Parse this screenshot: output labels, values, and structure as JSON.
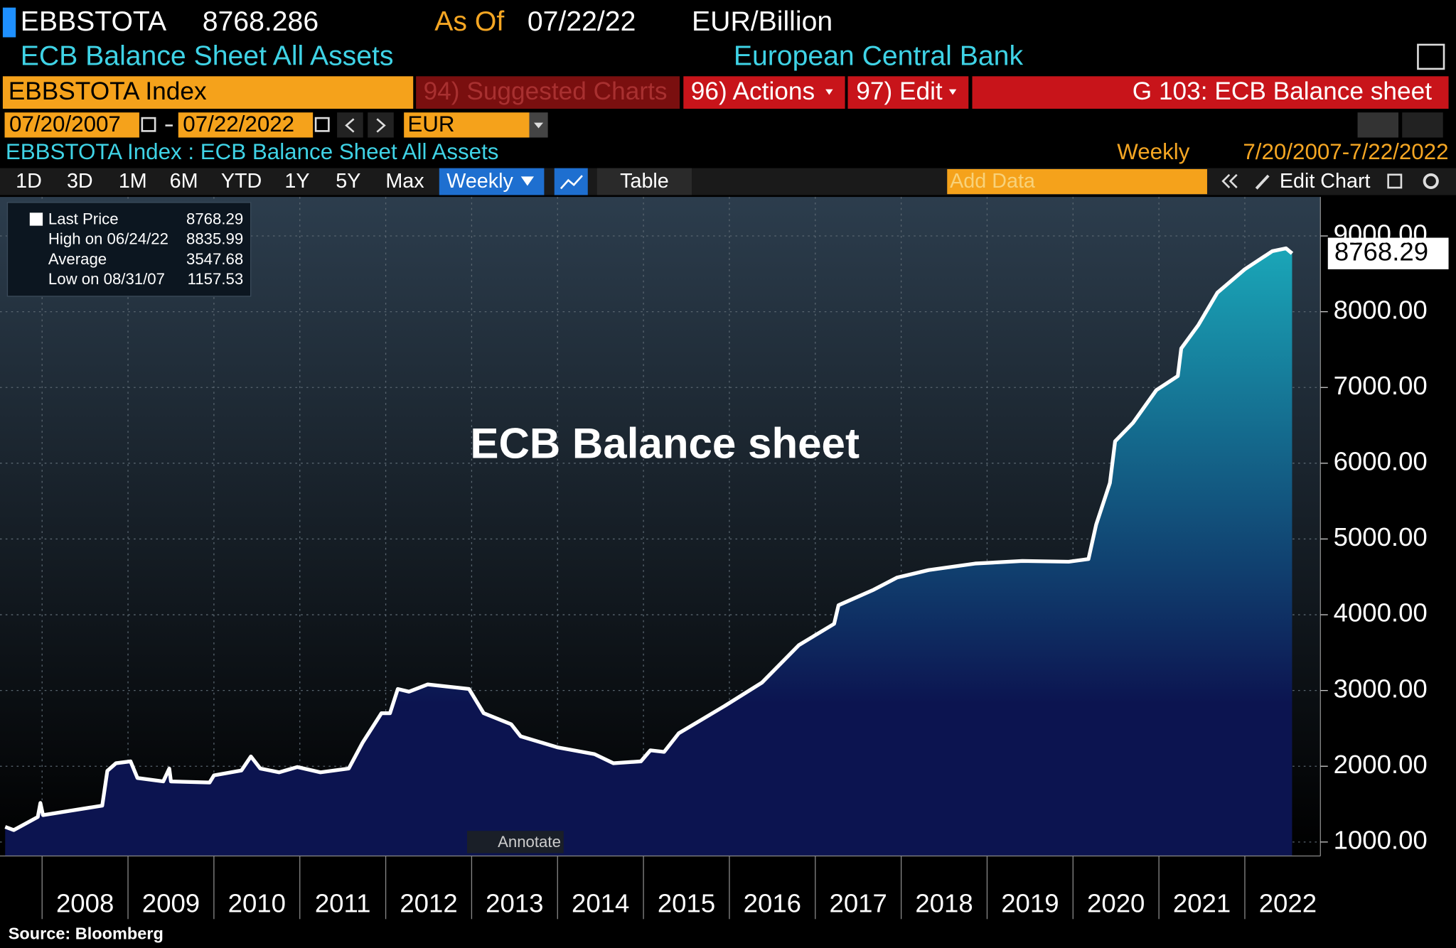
{
  "ticker_bar": {
    "ticker": "EBBSTOTA",
    "price": "8768.286",
    "as_of_label": "As Of",
    "as_of_date": "07/22/22",
    "units": "EUR/Billion",
    "name": "ECB Balance Sheet All Assets",
    "source": "European Central Bank"
  },
  "toolbar": {
    "security": "EBBSTOTA Index",
    "suggested": "94) Suggested Charts",
    "actions": "96) Actions",
    "edit": "97) Edit",
    "page": "G 103: ECB Balance sheet",
    "start_date": "07/20/2007",
    "end_date": "07/22/2022",
    "currency": "EUR",
    "series_title": "EBBSTOTA Index : ECB Balance Sheet All Assets",
    "frequency": "Weekly",
    "range": "7/20/2007-7/22/2022",
    "periods": [
      "1D",
      "3D",
      "1M",
      "6M",
      "YTD",
      "1Y",
      "5Y",
      "Max"
    ],
    "weekly_button": "Weekly",
    "table_button": "Table",
    "add_data_placeholder": "Add Data",
    "edit_chart": "Edit Chart"
  },
  "legend_box": {
    "rows": [
      [
        "Last Price",
        "8768.29"
      ],
      [
        "High on 06/24/22",
        "8835.99"
      ],
      [
        "Average",
        "3547.68"
      ],
      [
        "Low on 08/31/07",
        "1157.53"
      ]
    ]
  },
  "chart_data": {
    "type": "area",
    "title": "ECB Balance sheet",
    "color": "#ffffff",
    "fill_top": "#1aa6b8",
    "fill_bottom": "#0c1450",
    "x": [
      2007.57,
      2007.67,
      2007.95,
      2007.98,
      2008.01,
      2008.7,
      2008.76,
      2008.86,
      2009.03,
      2009.11,
      2009.41,
      2009.48,
      2009.5,
      2009.95,
      2010.0,
      2010.32,
      2010.43,
      2010.54,
      2010.76,
      2010.97,
      2011.24,
      2011.57,
      2011.73,
      2011.95,
      2012.05,
      2012.14,
      2012.27,
      2012.49,
      2012.97,
      2013.14,
      2013.46,
      2013.57,
      2014.0,
      2014.43,
      2014.65,
      2014.97,
      2015.08,
      2015.24,
      2015.41,
      2015.95,
      2016.38,
      2016.81,
      2017.22,
      2017.27,
      2017.68,
      2017.95,
      2018.32,
      2018.86,
      2019.41,
      2019.95,
      2020.18,
      2020.27,
      2020.43,
      2020.49,
      2020.7,
      2020.97,
      2021.22,
      2021.26,
      2021.46,
      2021.68,
      2022.0,
      2022.32,
      2022.48,
      2022.55
    ],
    "values": [
      1200,
      1158,
      1330,
      1515,
      1355,
      1480,
      1940,
      2040,
      2065,
      1845,
      1800,
      1970,
      1800,
      1785,
      1880,
      1945,
      2130,
      1970,
      1920,
      1990,
      1920,
      1970,
      2310,
      2700,
      2700,
      3020,
      2985,
      3080,
      3020,
      2700,
      2555,
      2395,
      2250,
      2160,
      2040,
      2065,
      2210,
      2190,
      2435,
      2800,
      3105,
      3600,
      3880,
      4125,
      4330,
      4490,
      4590,
      4675,
      4710,
      4700,
      4735,
      5190,
      5740,
      6290,
      6535,
      6965,
      7150,
      7515,
      7825,
      8250,
      8560,
      8800,
      8836,
      8768.29
    ],
    "last_value_label": "8768.29",
    "xlim": [
      2007.51,
      2022.88
    ],
    "xticks": [
      {
        "value": 2008,
        "label": "2008"
      },
      {
        "value": 2009,
        "label": "2009"
      },
      {
        "value": 2010,
        "label": "2010"
      },
      {
        "value": 2011,
        "label": "2011"
      },
      {
        "value": 2012,
        "label": "2012"
      },
      {
        "value": 2013,
        "label": "2013"
      },
      {
        "value": 2014,
        "label": "2014"
      },
      {
        "value": 2015,
        "label": "2015"
      },
      {
        "value": 2016,
        "label": "2016"
      },
      {
        "value": 2017,
        "label": "2017"
      },
      {
        "value": 2018,
        "label": "2018"
      },
      {
        "value": 2019,
        "label": "2019"
      },
      {
        "value": 2020,
        "label": "2020"
      },
      {
        "value": 2021,
        "label": "2021"
      },
      {
        "value": 2022,
        "label": "2022"
      }
    ],
    "ylim": [
      816,
      9515
    ],
    "yticks": [
      {
        "value": 1000,
        "label": "1000.00"
      },
      {
        "value": 2000,
        "label": "2000.00"
      },
      {
        "value": 3000,
        "label": "3000.00"
      },
      {
        "value": 4000,
        "label": "4000.00"
      },
      {
        "value": 5000,
        "label": "5000.00"
      },
      {
        "value": 6000,
        "label": "6000.00"
      },
      {
        "value": 7000,
        "label": "7000.00"
      },
      {
        "value": 8000,
        "label": "8000.00"
      },
      {
        "value": 9000,
        "label": "9000.00"
      }
    ],
    "grid": true,
    "annotate": "Annotate",
    "source": "Source: Bloomberg"
  }
}
